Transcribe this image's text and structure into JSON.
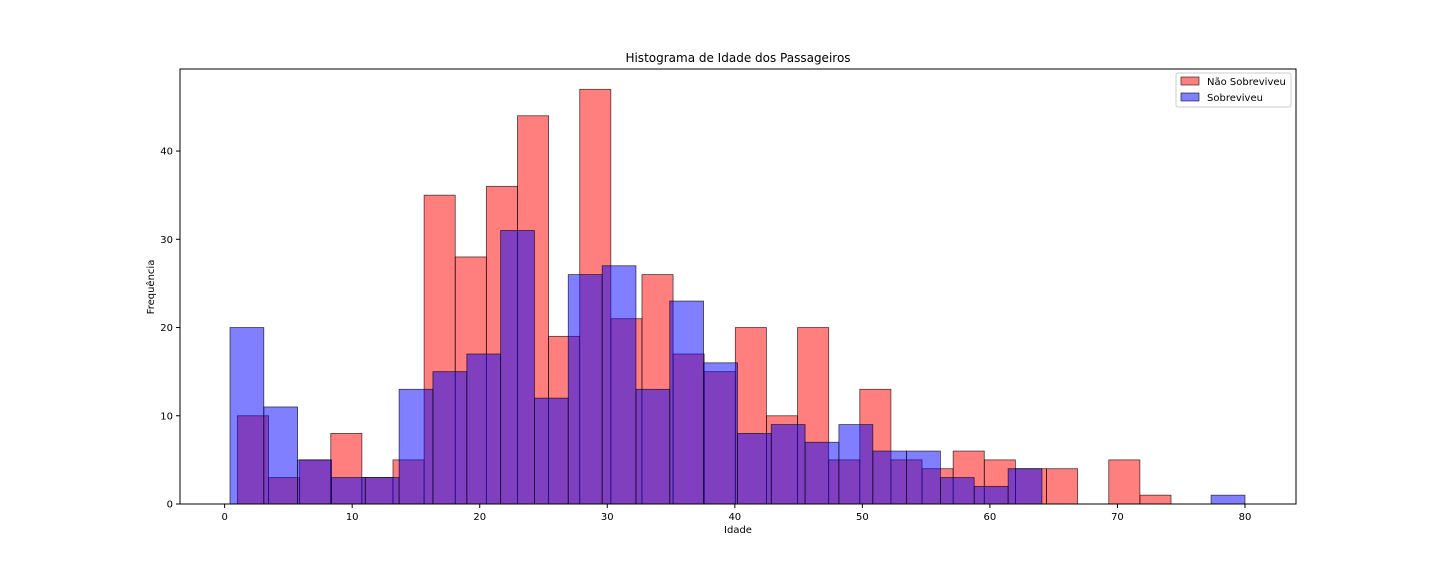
{
  "chart_data": {
    "type": "bar",
    "title": "Histograma de Idade dos Passageiros",
    "xlabel": "Idade",
    "ylabel": "Frequência",
    "xlim": [
      -3.5,
      84
    ],
    "ylim": [
      0,
      49.3
    ],
    "xticks": [
      0,
      10,
      20,
      30,
      40,
      50,
      60,
      70,
      80
    ],
    "yticks": [
      0,
      10,
      20,
      30,
      40
    ],
    "legend_position": "top-right",
    "grid": false,
    "series": [
      {
        "name": "Não Sobreviveu",
        "color": "#ff0000",
        "bins": [
          {
            "x0": 1.0,
            "x1": 3.44,
            "count": 10
          },
          {
            "x0": 3.44,
            "x1": 5.88,
            "count": 3
          },
          {
            "x0": 5.88,
            "x1": 8.32,
            "count": 5
          },
          {
            "x0": 8.32,
            "x1": 10.76,
            "count": 8
          },
          {
            "x0": 10.76,
            "x1": 13.2,
            "count": 3
          },
          {
            "x0": 13.2,
            "x1": 15.64,
            "count": 5
          },
          {
            "x0": 15.64,
            "x1": 18.08,
            "count": 35
          },
          {
            "x0": 18.08,
            "x1": 20.52,
            "count": 28
          },
          {
            "x0": 20.52,
            "x1": 22.96,
            "count": 36
          },
          {
            "x0": 22.96,
            "x1": 25.4,
            "count": 44
          },
          {
            "x0": 25.4,
            "x1": 27.84,
            "count": 19
          },
          {
            "x0": 27.84,
            "x1": 30.28,
            "count": 47
          },
          {
            "x0": 30.28,
            "x1": 32.72,
            "count": 21
          },
          {
            "x0": 32.72,
            "x1": 35.16,
            "count": 26
          },
          {
            "x0": 35.16,
            "x1": 37.6,
            "count": 17
          },
          {
            "x0": 37.6,
            "x1": 40.04,
            "count": 15
          },
          {
            "x0": 40.04,
            "x1": 42.48,
            "count": 20
          },
          {
            "x0": 42.48,
            "x1": 44.92,
            "count": 10
          },
          {
            "x0": 44.92,
            "x1": 47.36,
            "count": 20
          },
          {
            "x0": 47.36,
            "x1": 49.8,
            "count": 5
          },
          {
            "x0": 49.8,
            "x1": 52.24,
            "count": 13
          },
          {
            "x0": 52.24,
            "x1": 54.68,
            "count": 5
          },
          {
            "x0": 54.68,
            "x1": 57.12,
            "count": 4
          },
          {
            "x0": 57.12,
            "x1": 59.56,
            "count": 6
          },
          {
            "x0": 59.56,
            "x1": 62.0,
            "count": 5
          },
          {
            "x0": 62.0,
            "x1": 64.44,
            "count": 4
          },
          {
            "x0": 64.44,
            "x1": 66.88,
            "count": 4
          },
          {
            "x0": 66.88,
            "x1": 69.32,
            "count": 0
          },
          {
            "x0": 69.32,
            "x1": 71.76,
            "count": 5
          },
          {
            "x0": 71.76,
            "x1": 74.2,
            "count": 1
          }
        ]
      },
      {
        "name": "Sobreviveu",
        "color": "#0000ff",
        "bins": [
          {
            "x0": 0.42,
            "x1": 3.07,
            "count": 20
          },
          {
            "x0": 3.07,
            "x1": 5.72,
            "count": 11
          },
          {
            "x0": 5.72,
            "x1": 8.38,
            "count": 5
          },
          {
            "x0": 8.38,
            "x1": 11.03,
            "count": 3
          },
          {
            "x0": 11.03,
            "x1": 13.68,
            "count": 3
          },
          {
            "x0": 13.68,
            "x1": 16.33,
            "count": 13
          },
          {
            "x0": 16.33,
            "x1": 18.99,
            "count": 15
          },
          {
            "x0": 18.99,
            "x1": 21.64,
            "count": 17
          },
          {
            "x0": 21.64,
            "x1": 24.29,
            "count": 31
          },
          {
            "x0": 24.29,
            "x1": 26.94,
            "count": 12
          },
          {
            "x0": 26.94,
            "x1": 29.6,
            "count": 26
          },
          {
            "x0": 29.6,
            "x1": 32.25,
            "count": 27
          },
          {
            "x0": 32.25,
            "x1": 34.9,
            "count": 13
          },
          {
            "x0": 34.9,
            "x1": 37.55,
            "count": 23
          },
          {
            "x0": 37.55,
            "x1": 40.21,
            "count": 16
          },
          {
            "x0": 40.21,
            "x1": 42.86,
            "count": 8
          },
          {
            "x0": 42.86,
            "x1": 45.51,
            "count": 9
          },
          {
            "x0": 45.51,
            "x1": 48.16,
            "count": 7
          },
          {
            "x0": 48.16,
            "x1": 50.82,
            "count": 9
          },
          {
            "x0": 50.82,
            "x1": 53.47,
            "count": 6
          },
          {
            "x0": 53.47,
            "x1": 56.12,
            "count": 6
          },
          {
            "x0": 56.12,
            "x1": 58.77,
            "count": 3
          },
          {
            "x0": 58.77,
            "x1": 61.43,
            "count": 2
          },
          {
            "x0": 61.43,
            "x1": 64.08,
            "count": 4
          },
          {
            "x0": 64.08,
            "x1": 66.73,
            "count": 0
          },
          {
            "x0": 66.73,
            "x1": 69.38,
            "count": 0
          },
          {
            "x0": 69.38,
            "x1": 72.04,
            "count": 0
          },
          {
            "x0": 72.04,
            "x1": 74.69,
            "count": 0
          },
          {
            "x0": 74.69,
            "x1": 77.34,
            "count": 0
          },
          {
            "x0": 77.34,
            "x1": 80.0,
            "count": 1
          }
        ]
      }
    ]
  }
}
